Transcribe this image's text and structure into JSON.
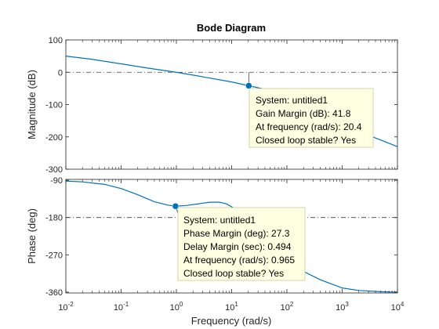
{
  "chart_data": {
    "type": "line",
    "title": "Bode Diagram",
    "xlabel": "Frequency  (rad/s)",
    "x_scale": "log",
    "xlim": [
      0.01,
      10000
    ],
    "x_tick_labels": [
      {
        "base": "10",
        "exp": "-2"
      },
      {
        "base": "10",
        "exp": "-1"
      },
      {
        "base": "10",
        "exp": "0"
      },
      {
        "base": "10",
        "exp": "1"
      },
      {
        "base": "10",
        "exp": "2"
      },
      {
        "base": "10",
        "exp": "3"
      },
      {
        "base": "10",
        "exp": "4"
      }
    ],
    "line_color": "#0072BD",
    "grid": false,
    "panels": [
      {
        "id": "magnitude",
        "ylabel": "Magnitude (dB)",
        "ylim": [
          -300,
          100
        ],
        "yticks": [
          100,
          0,
          -100,
          -200,
          -300
        ],
        "reference_line": 0,
        "series": [
          {
            "x": [
              0.01,
              0.03,
              0.1,
              0.3,
              1,
              3,
              10,
              20.4,
              50,
              100,
              300,
              1000,
              3000,
              10000
            ],
            "y": [
              50,
              40,
              26,
              13,
              0,
              -14,
              -30,
              -41.8,
              -56,
              -71,
              -110,
              -160,
              -195,
              -230
            ]
          }
        ],
        "marker": {
          "x": 20.4,
          "y": -41.8
        },
        "datatip": [
          "System: untitled1",
          "Gain Margin (dB): 41.8",
          "At frequency (rad/s): 20.4",
          "Closed loop stable? Yes"
        ]
      },
      {
        "id": "phase",
        "ylabel": "Phase (deg)",
        "ylim": [
          -362,
          -88
        ],
        "yticks": [
          -90,
          -180,
          -270,
          -360
        ],
        "reference_line": -180,
        "series": [
          {
            "x": [
              0.01,
              0.02,
              0.05,
              0.1,
              0.2,
              0.4,
              0.7,
              0.965,
              1.5,
              2.5,
              4,
              6,
              8,
              12,
              20,
              30,
              50,
              100,
              200,
              400,
              1000,
              2000,
              5000,
              10000
            ],
            "y": [
              -92,
              -94,
              -100,
              -110,
              -125,
              -142,
              -150,
              -152.7,
              -151,
              -147,
              -143,
              -143,
              -147,
              -160,
              -185,
              -210,
              -240,
              -280,
              -310,
              -330,
              -350,
              -356,
              -359,
              -360
            ]
          }
        ],
        "marker": {
          "x": 0.965,
          "y": -152.7
        },
        "datatip": [
          "System: untitled1",
          "Phase Margin (deg): 27.3",
          "Delay Margin (sec): 0.494",
          "At frequency (rad/s): 0.965",
          "Closed loop stable? Yes"
        ]
      }
    ]
  }
}
